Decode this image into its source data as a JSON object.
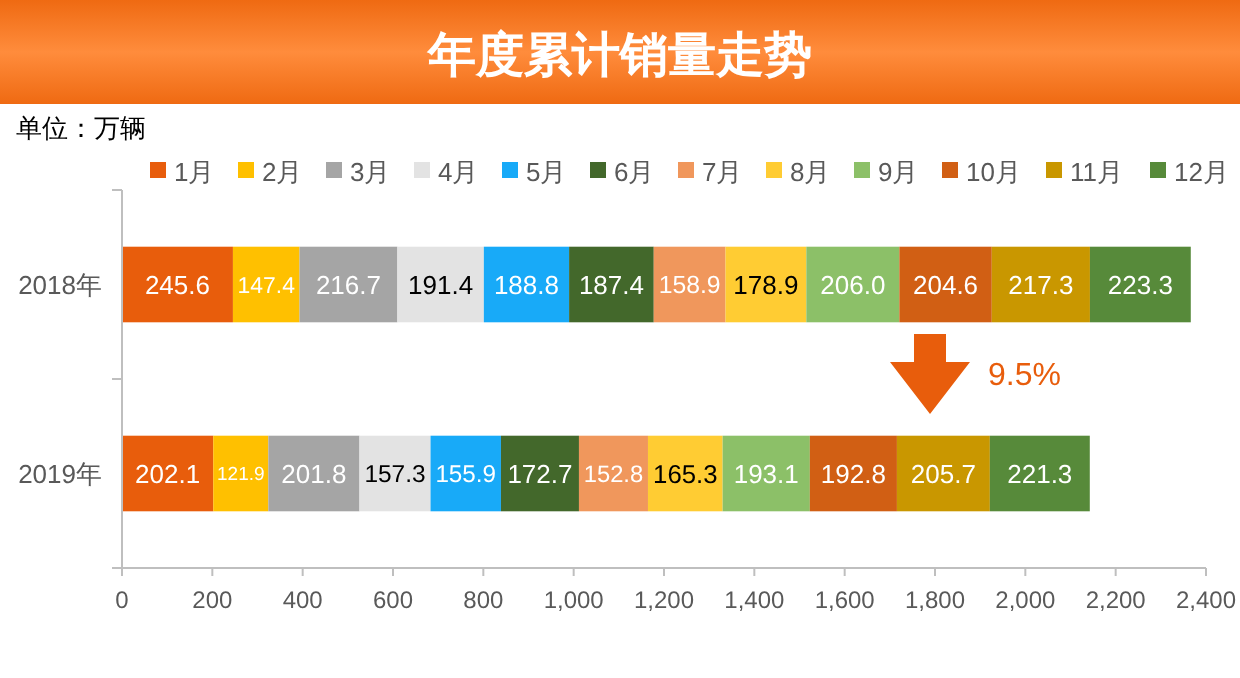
{
  "chart_data": {
    "type": "bar",
    "orientation": "horizontal",
    "stacked": true,
    "title": "年度累计销量走势",
    "subtitle": "单位：万辆",
    "categories": [
      "2018年",
      "2019年"
    ],
    "series": [
      {
        "name": "1月",
        "color": "#e85d0c",
        "values": [
          245.6,
          202.1
        ]
      },
      {
        "name": "2月",
        "color": "#ffc000",
        "values": [
          147.4,
          121.9
        ]
      },
      {
        "name": "3月",
        "color": "#a5a5a5",
        "values": [
          216.7,
          201.8
        ]
      },
      {
        "name": "4月",
        "color": "#e3e3e3",
        "values": [
          191.4,
          157.3
        ]
      },
      {
        "name": "5月",
        "color": "#18aaf8",
        "values": [
          188.8,
          155.9
        ]
      },
      {
        "name": "6月",
        "color": "#43682b",
        "values": [
          187.4,
          172.7
        ]
      },
      {
        "name": "7月",
        "color": "#f0975c",
        "values": [
          158.9,
          152.8
        ]
      },
      {
        "name": "8月",
        "color": "#ffcc33",
        "values": [
          178.9,
          165.3
        ]
      },
      {
        "name": "9月",
        "color": "#8cc068",
        "values": [
          206.0,
          193.1
        ],
        "value_labels": [
          "206.0",
          "193.1"
        ]
      },
      {
        "name": "10月",
        "color": "#d15f14",
        "values": [
          204.6,
          192.8
        ]
      },
      {
        "name": "11月",
        "color": "#c99700",
        "values": [
          217.3,
          205.7
        ]
      },
      {
        "name": "12月",
        "color": "#578a3a",
        "values": [
          223.3,
          221.3
        ]
      }
    ],
    "xlim": [
      0,
      2400
    ],
    "xticks": [
      0,
      200,
      400,
      600,
      800,
      {
        "value": 1000,
        "label": "1,000"
      },
      {
        "value": 1200,
        "label": "1,200"
      },
      {
        "value": 1400,
        "label": "1,400"
      },
      {
        "value": 1600,
        "label": "1,600"
      },
      {
        "value": 1800,
        "label": "1,800"
      },
      {
        "value": 2000,
        "label": "2,000"
      },
      {
        "value": 2200,
        "label": "2,200"
      },
      {
        "value": 2400,
        "label": "2,400"
      }
    ],
    "data_labels": true,
    "legend": "top",
    "annotations": [
      "9.5%"
    ]
  }
}
